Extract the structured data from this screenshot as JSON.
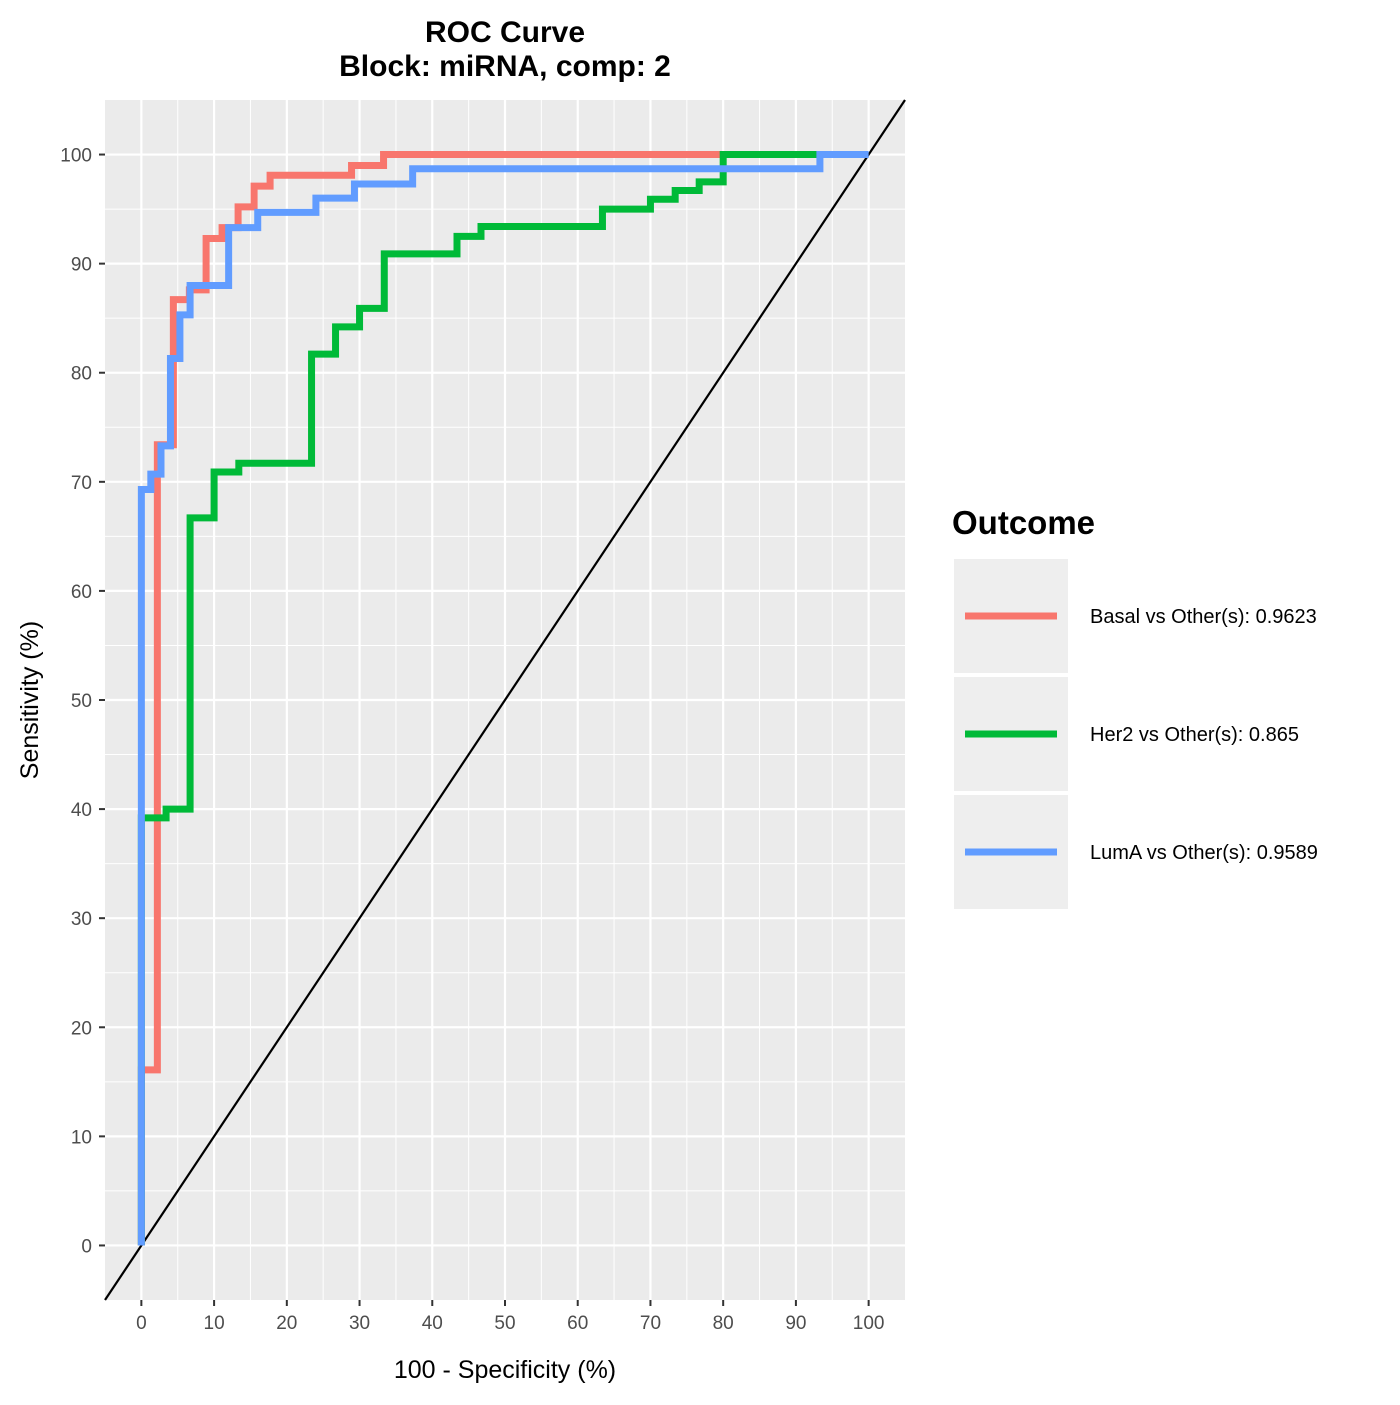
{
  "chart_data": {
    "type": "line",
    "title": "ROC Curve",
    "subtitle": "Block: miRNA, comp: 2",
    "xlabel": "100 - Specificity (%)",
    "ylabel": "Sensitivity (%)",
    "xlim": [
      -5,
      105
    ],
    "ylim": [
      -5,
      105
    ],
    "x_ticks": [
      "0",
      "10",
      "20",
      "30",
      "40",
      "50",
      "60",
      "70",
      "80",
      "90",
      "100"
    ],
    "y_ticks": [
      "0",
      "10",
      "20",
      "30",
      "40",
      "50",
      "60",
      "70",
      "80",
      "90",
      "100"
    ],
    "grid": true,
    "legend": {
      "title": "Outcome",
      "placement": "right"
    },
    "reference_line": {
      "x": [
        -5,
        105
      ],
      "y": [
        -5,
        105
      ],
      "color": "#000000"
    },
    "series": [
      {
        "name": "Basal vs Other(s): 0.9623",
        "color": "#F8766D",
        "x": [
          0,
          0,
          2.2,
          2.2,
          4.4,
          4.4,
          6.6,
          6.6,
          8.9,
          8.9,
          11.1,
          11.1,
          13.3,
          13.3,
          15.5,
          15.5,
          17.7,
          17.7,
          28.9,
          28.9,
          33.3,
          33.3,
          80
        ],
        "y": [
          0,
          16.1,
          16.1,
          73.4,
          73.4,
          86.7,
          86.7,
          87.6,
          87.6,
          92.3,
          92.3,
          93.3,
          93.3,
          95.2,
          95.2,
          97.1,
          97.1,
          98.1,
          98.1,
          99.0,
          99.0,
          100,
          100
        ]
      },
      {
        "name": "Her2 vs Other(s): 0.865",
        "color": "#00BA38",
        "x": [
          0,
          0,
          3.4,
          3.4,
          6.7,
          6.7,
          10,
          10,
          13.4,
          13.4,
          23.4,
          23.4,
          26.7,
          26.7,
          30,
          30,
          33.4,
          33.4,
          43.4,
          43.4,
          46.7,
          46.7,
          63.4,
          63.4,
          70,
          70,
          73.4,
          73.4,
          76.7,
          76.7,
          80,
          80,
          93
        ],
        "y": [
          0,
          39.2,
          39.2,
          40.0,
          40.0,
          66.7,
          66.7,
          70.9,
          70.9,
          71.7,
          71.7,
          81.7,
          81.7,
          84.2,
          84.2,
          85.9,
          85.9,
          90.9,
          90.9,
          92.5,
          92.5,
          93.4,
          93.4,
          95.0,
          95.0,
          95.9,
          95.9,
          96.7,
          96.7,
          97.5,
          97.5,
          100,
          100
        ]
      },
      {
        "name": "LumA vs Other(s): 0.9589",
        "color": "#619CFF",
        "x": [
          0,
          0,
          1.3,
          1.3,
          2.7,
          2.7,
          4.0,
          4.0,
          5.3,
          5.3,
          6.7,
          6.7,
          12.0,
          12.0,
          16.0,
          16.0,
          24.0,
          24.0,
          29.3,
          29.3,
          37.3,
          37.3,
          93.3,
          93.3,
          100
        ],
        "y": [
          0,
          69.3,
          69.3,
          70.7,
          70.7,
          73.3,
          73.3,
          81.3,
          81.3,
          85.3,
          85.3,
          88.0,
          88.0,
          93.3,
          93.3,
          94.7,
          94.7,
          96.0,
          96.0,
          97.3,
          97.3,
          98.7,
          98.7,
          100,
          100
        ]
      }
    ]
  }
}
